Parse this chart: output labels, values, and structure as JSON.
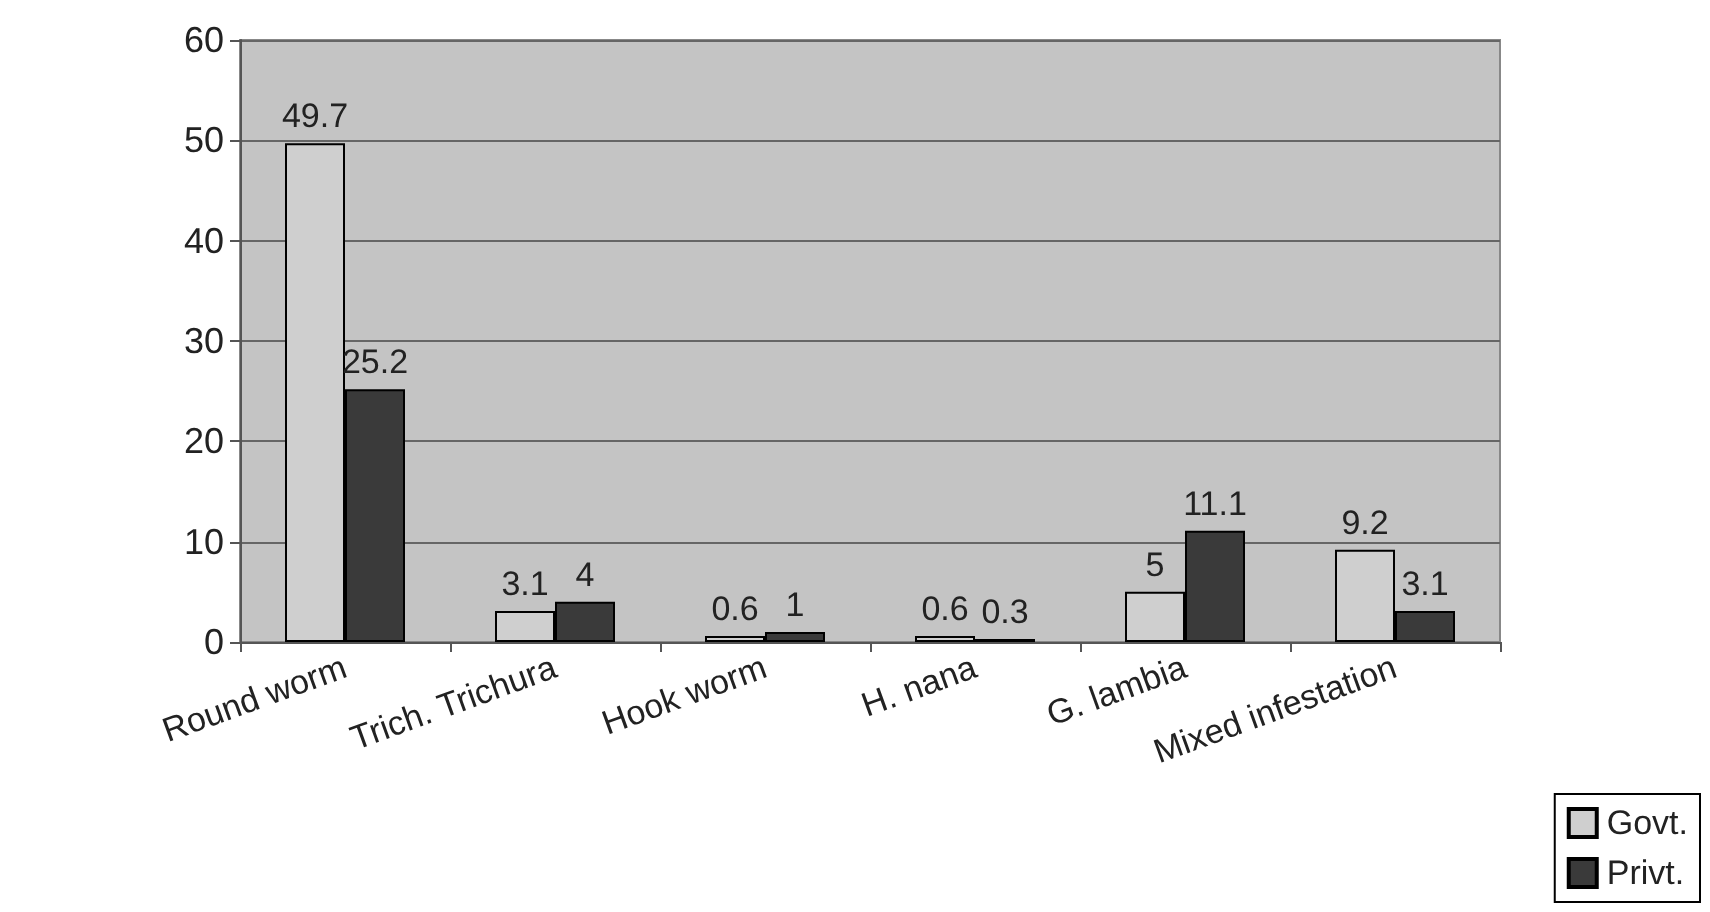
{
  "chart_data": {
    "type": "bar",
    "categories": [
      "Round worm",
      "Trich. Trichura",
      "Hook worm",
      "H. nana",
      "G. lambia",
      "Mixed infestation"
    ],
    "series": [
      {
        "name": "Govt.",
        "color": "#cfcfcf",
        "values": [
          49.7,
          3.1,
          0.6,
          0.6,
          5,
          9.2
        ]
      },
      {
        "name": "Privt.",
        "color": "#3a3a3a",
        "values": [
          25.2,
          4,
          1,
          0.3,
          11.1,
          3.1
        ]
      }
    ],
    "ylim": [
      0,
      60
    ],
    "yticks": [
      0,
      10,
      20,
      30,
      40,
      50,
      60
    ],
    "grid": "y",
    "legend": "bottom right",
    "data_labels": true
  }
}
